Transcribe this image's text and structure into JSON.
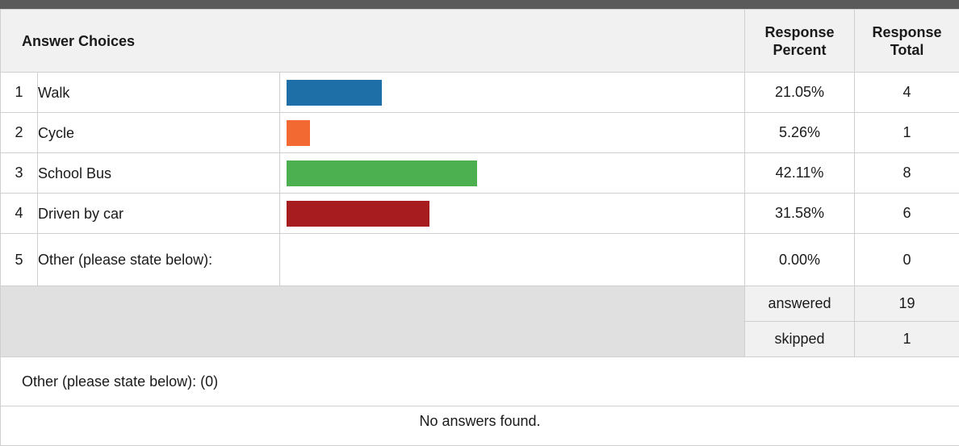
{
  "table": {
    "header": {
      "answer_choices": "Answer Choices",
      "response_percent_line1": "Response",
      "response_percent_line2": "Percent",
      "response_total_line1": "Response",
      "response_total_line2": "Total"
    },
    "rows": [
      {
        "index": "1",
        "label": "Walk",
        "percent": "21.05%",
        "total": "4",
        "fraction": 0.2105,
        "color": "#1e6ea7"
      },
      {
        "index": "2",
        "label": "Cycle",
        "percent": "5.26%",
        "total": "1",
        "fraction": 0.0526,
        "color": "#f26a32"
      },
      {
        "index": "3",
        "label": "School Bus",
        "percent": "42.11%",
        "total": "8",
        "fraction": 0.4211,
        "color": "#4cb050"
      },
      {
        "index": "4",
        "label": "Driven by car",
        "percent": "31.58%",
        "total": "6",
        "fraction": 0.3158,
        "color": "#a61c1f"
      },
      {
        "index": "5",
        "label": "Other (please state below):",
        "percent": "0.00%",
        "total": "0",
        "fraction": 0.0,
        "color": "#888888"
      }
    ],
    "summary": {
      "answered_label": "answered",
      "answered_value": "19",
      "skipped_label": "skipped",
      "skipped_value": "1"
    },
    "other_section": {
      "title": "Other (please state below): (0)",
      "empty_message": "No answers found."
    }
  }
}
